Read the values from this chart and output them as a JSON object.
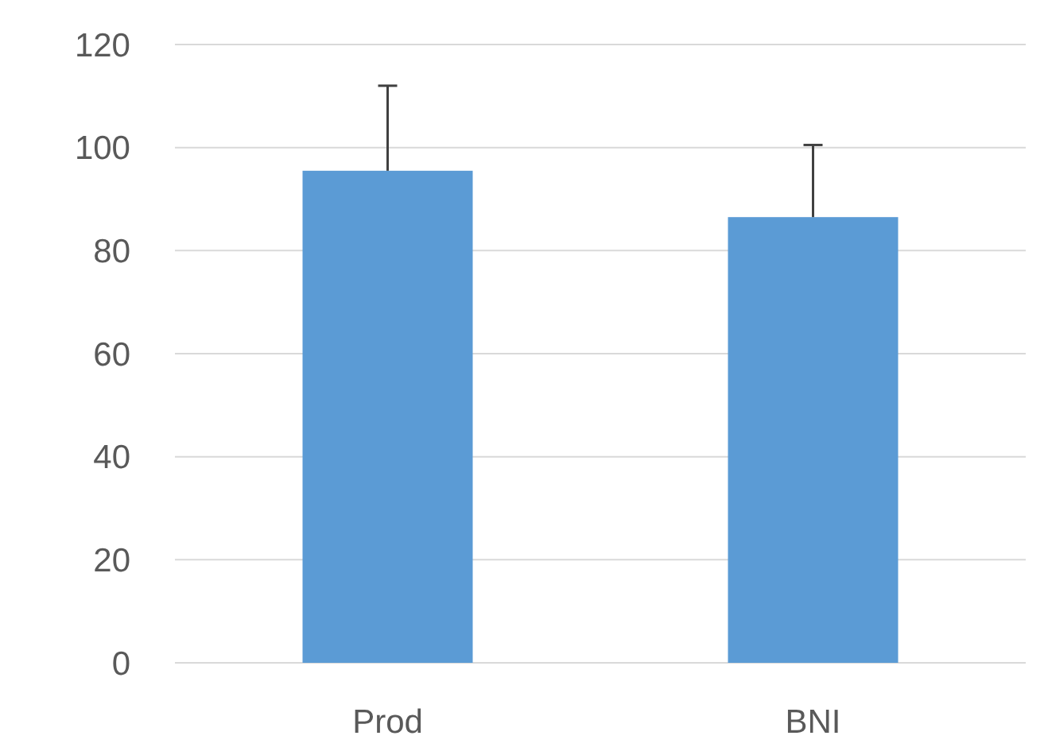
{
  "chart_data": {
    "type": "bar",
    "categories": [
      "Prod",
      "BNI"
    ],
    "values": [
      95.5,
      86.5
    ],
    "errors": [
      [
        95.5,
        112
      ],
      [
        86.5,
        100.5
      ]
    ],
    "color": "#5b9bd5",
    "ylim": [
      0,
      120
    ],
    "yticks": [
      0,
      20,
      40,
      60,
      80,
      100,
      120
    ],
    "grid": "y"
  }
}
